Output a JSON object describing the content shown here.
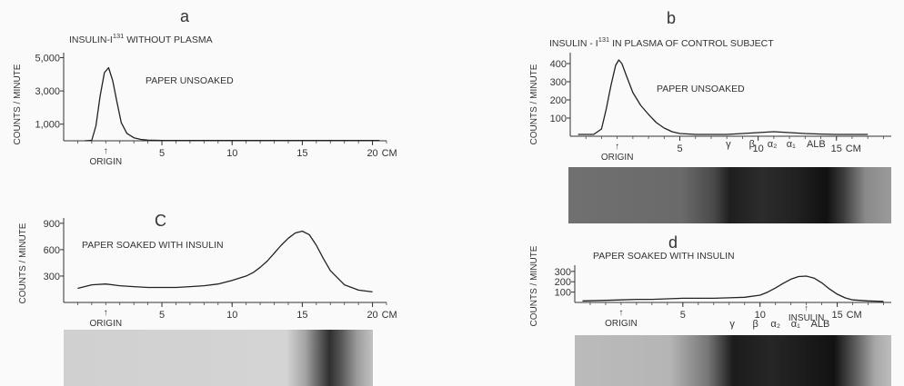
{
  "chart_data": [
    {
      "id": "a",
      "type": "line",
      "panel_letter": "a",
      "title": "INSULIN-I",
      "title_superscript": "131",
      "title_rest": " WITHOUT PLASMA",
      "ylabel": "COUNTS / MINUTE",
      "annotation": "PAPER UNSOAKED",
      "origin_label": "ORIGIN",
      "origin_arrow": "↑",
      "x_unit": "CM",
      "xlim": [
        -2,
        21
      ],
      "ylim": [
        0,
        5300
      ],
      "xticks": [
        5,
        10,
        15,
        20
      ],
      "xtick_labels": [
        "5",
        "10",
        "15",
        "20"
      ],
      "yticks": [
        1000,
        3000,
        5000
      ],
      "ytick_labels": [
        "1,000",
        "3,000",
        "5,000"
      ],
      "origin_x": 1,
      "series": [
        {
          "x": [
            -0.5,
            0,
            0.3,
            0.6,
            0.9,
            1.2,
            1.5,
            1.8,
            2.1,
            2.5,
            3,
            3.5,
            4,
            5,
            10,
            15,
            20.5
          ],
          "y": [
            0,
            30,
            900,
            2700,
            4100,
            4400,
            3600,
            2300,
            1100,
            450,
            180,
            80,
            40,
            20,
            20,
            20,
            20
          ]
        }
      ]
    },
    {
      "id": "b",
      "type": "line",
      "panel_letter": "b",
      "title": "INSULIN - I",
      "title_superscript": "131",
      "title_rest": " IN PLASMA OF CONTROL SUBJECT",
      "ylabel": "COUNTS / MINUTE",
      "annotation": "PAPER UNSOAKED",
      "origin_label": "ORIGIN",
      "origin_arrow": "↑",
      "x_unit": "CM",
      "xlim": [
        -2,
        18.5
      ],
      "ylim": [
        0,
        460
      ],
      "xticks": [
        5,
        10,
        15
      ],
      "xtick_labels": [
        "5",
        "10",
        "15"
      ],
      "yticks": [
        100,
        200,
        300,
        400
      ],
      "ytick_labels": [
        "100",
        "200",
        "300",
        "400"
      ],
      "origin_x": 1,
      "band_labels": [
        "γ",
        "β",
        "α₂",
        "α₁",
        "ALB"
      ],
      "band_positions": [
        8.1,
        9.6,
        10.9,
        12.1,
        13.7
      ],
      "series": [
        {
          "x": [
            -1.5,
            -0.5,
            0,
            0.3,
            0.6,
            0.9,
            1.1,
            1.3,
            1.6,
            2,
            2.5,
            3,
            3.5,
            4,
            4.5,
            5,
            6,
            7,
            8,
            9,
            10,
            11,
            12,
            13,
            14,
            15,
            16,
            17
          ],
          "y": [
            10,
            10,
            40,
            150,
            280,
            390,
            420,
            400,
            330,
            240,
            170,
            120,
            75,
            45,
            25,
            15,
            10,
            10,
            10,
            15,
            20,
            25,
            20,
            15,
            12,
            10,
            10,
            10
          ]
        }
      ]
    },
    {
      "id": "c",
      "type": "line",
      "panel_letter": "C",
      "title": "",
      "ylabel": "COUNTS / MINUTE",
      "annotation": "PAPER SOAKED WITH INSULIN",
      "origin_label": "ORIGIN",
      "origin_arrow": "↑",
      "x_unit": "CM",
      "xlim": [
        -2,
        21
      ],
      "ylim": [
        0,
        960
      ],
      "xticks": [
        5,
        10,
        15,
        20
      ],
      "xtick_labels": [
        "5",
        "10",
        "15",
        "20"
      ],
      "yticks": [
        300,
        600,
        900
      ],
      "ytick_labels": [
        "300",
        "600",
        "900"
      ],
      "origin_x": 1,
      "series": [
        {
          "x": [
            -1,
            0,
            1,
            2,
            3,
            4,
            5,
            6,
            7,
            8,
            9,
            10,
            11,
            11.5,
            12,
            12.5,
            13,
            13.5,
            14,
            14.5,
            15,
            15.5,
            16,
            16.5,
            17,
            18,
            19,
            20
          ],
          "y": [
            160,
            200,
            210,
            190,
            180,
            170,
            170,
            170,
            180,
            190,
            210,
            250,
            300,
            340,
            400,
            470,
            560,
            650,
            730,
            790,
            810,
            770,
            650,
            500,
            360,
            200,
            140,
            120
          ]
        }
      ]
    },
    {
      "id": "d",
      "type": "line",
      "panel_letter": "d",
      "title": "",
      "ylabel": "COUNTS / MINUTE",
      "annotation": "PAPER SOAKED WITH INSULIN",
      "origin_label": "ORIGIN",
      "origin_arrow": "↑",
      "x_unit": "CM",
      "xlim": [
        -2,
        18.5
      ],
      "ylim": [
        0,
        360
      ],
      "xticks": [
        5,
        10,
        15
      ],
      "xtick_labels": [
        "5",
        "10",
        "15"
      ],
      "yticks": [
        100,
        200,
        300
      ],
      "ytick_labels": [
        "100",
        "200",
        "300"
      ],
      "origin_x": 1,
      "peak_label": "INSULIN",
      "peak_arrow": "↑",
      "peak_x": 13,
      "band_labels": [
        "γ",
        "β",
        "α₂",
        "α₁",
        "ALB"
      ],
      "band_positions": [
        8.2,
        9.7,
        11.0,
        12.3,
        13.9
      ],
      "series": [
        {
          "x": [
            -1.5,
            0,
            1,
            2,
            3,
            4,
            5,
            6,
            7,
            8,
            9,
            10,
            10.5,
            11,
            11.5,
            12,
            12.5,
            13,
            13.5,
            14,
            14.5,
            15,
            15.5,
            16,
            17,
            18
          ],
          "y": [
            15,
            20,
            25,
            30,
            30,
            35,
            40,
            40,
            40,
            45,
            50,
            70,
            100,
            140,
            185,
            225,
            250,
            255,
            235,
            190,
            130,
            80,
            45,
            25,
            15,
            10
          ]
        }
      ]
    }
  ]
}
